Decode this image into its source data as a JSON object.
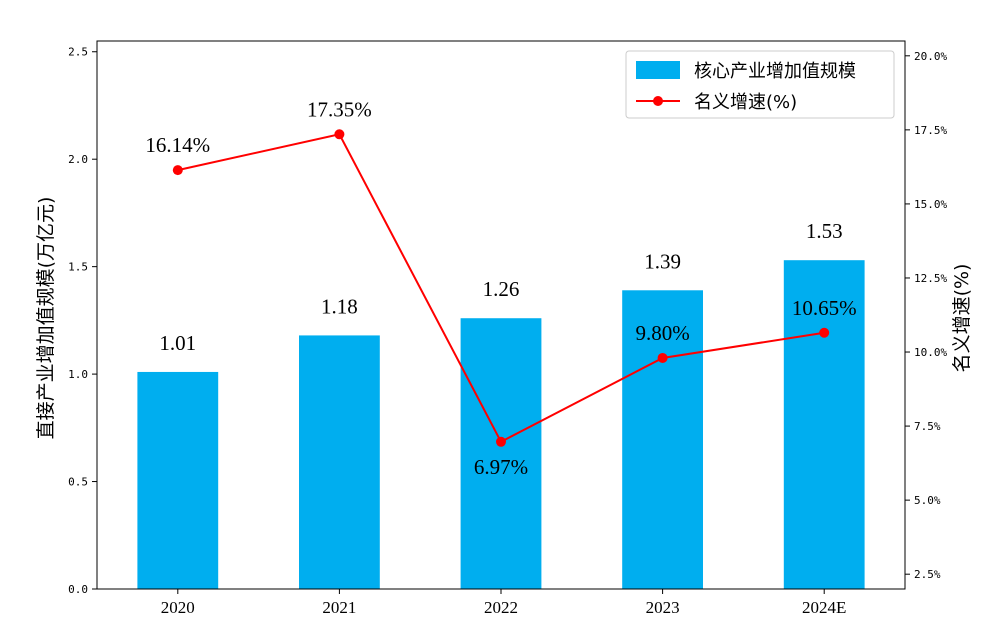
{
  "chart_data": {
    "type": "bar",
    "categories": [
      "2020",
      "2021",
      "2022",
      "2023",
      "2024E"
    ],
    "series": [
      {
        "name": "核心产业增加值规模",
        "type": "bar",
        "axis": "left",
        "values": [
          1.01,
          1.18,
          1.26,
          1.39,
          1.53
        ],
        "labels": [
          "1.01",
          "1.18",
          "1.26",
          "1.39",
          "1.53"
        ],
        "color": "#00aeef"
      },
      {
        "name": "名义增速(%)",
        "type": "line",
        "axis": "right",
        "values": [
          16.14,
          17.35,
          6.97,
          9.8,
          10.65
        ],
        "labels": [
          "16.14%",
          "17.35%",
          "6.97%",
          "9.80%",
          "10.65%"
        ],
        "color": "#ff0000"
      }
    ],
    "ylabel": "直接产业增加值规模(万亿元)",
    "y2label": "名义增速(%)",
    "ylim": [
      0,
      2.55
    ],
    "y2lim": [
      2.0,
      20.5
    ],
    "yticks": [
      "0.0",
      "0.5",
      "1.0",
      "1.5",
      "2.0",
      "2.5"
    ],
    "y2ticks": [
      "2.5%",
      "5.0%",
      "7.5%",
      "10.0%",
      "12.5%",
      "15.0%",
      "17.5%",
      "20.0%"
    ],
    "legend_position": "top-right",
    "grid": false
  }
}
